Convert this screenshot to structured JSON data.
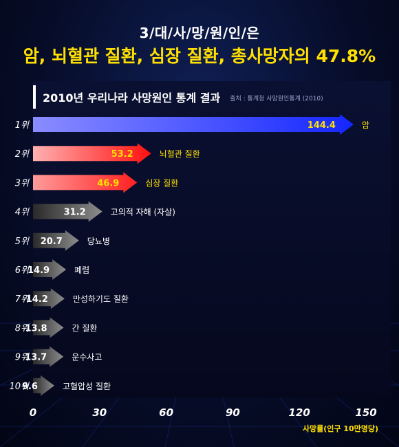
{
  "headline": "3/대/사/망/원/인/은",
  "subheadline": "암, 뇌혈관 질환, 심장 질환, 총사망자의 47.8%",
  "chart_data": {
    "type": "bar",
    "orientation": "horizontal",
    "title": "2010년 우리나라 사망원인 통계 결과",
    "source": "출처 : 통계청 사망원인통계 (2010)",
    "xlabel": "사망률(인구 10만명당)",
    "xlim": [
      0,
      150
    ],
    "xticks": [
      "0",
      "30",
      "60",
      "90",
      "120",
      "150"
    ],
    "ranks": [
      "1위",
      "2위",
      "3위",
      "4위",
      "5위",
      "6위",
      "7위",
      "8위",
      "9위",
      "10위"
    ],
    "categories": [
      "암",
      "뇌혈관 질환",
      "심장 질환",
      "고의적 자해 (자살)",
      "당뇨병",
      "폐렴",
      "만성하기도 질환",
      "간 질환",
      "운수사고",
      "고혈압성 질환"
    ],
    "values": [
      144.4,
      53.2,
      46.9,
      31.2,
      20.7,
      14.9,
      14.2,
      13.8,
      13.7,
      9.6
    ],
    "value_labels": [
      "144.4",
      "53.2",
      "46.9",
      "31.2",
      "20.7",
      "14.9",
      "14.2",
      "13.8",
      "13.7",
      "9.6"
    ],
    "colors": {
      "top1": "#2a3cff",
      "top2": "#ff1a1a",
      "top3": "#ff3030",
      "others": "#6a6a6a",
      "value_highlight": "#ffe000",
      "value_normal": "#ffffff"
    },
    "grid": false,
    "legend": "none"
  }
}
